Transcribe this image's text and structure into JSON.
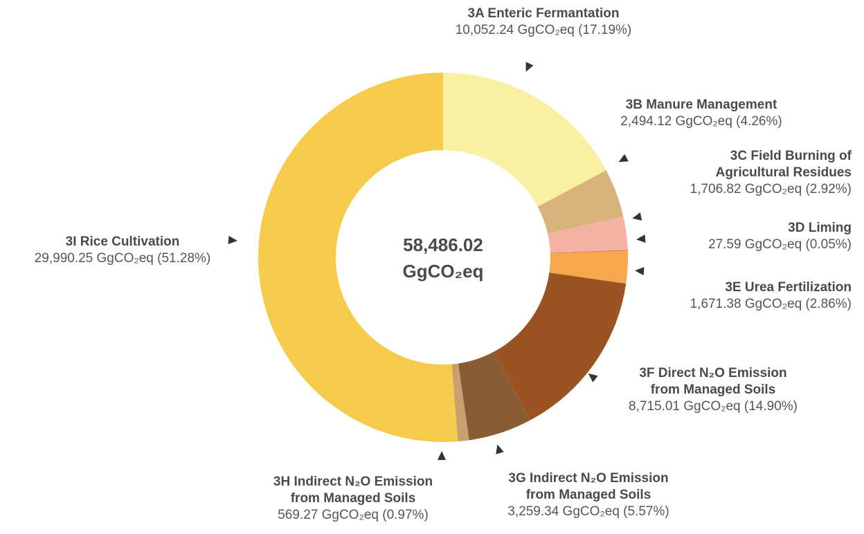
{
  "chart_data": {
    "type": "donut",
    "center_label": "58,486.02\nGgCO₂eq",
    "categories": [
      "3A Enteric Fermantation",
      "3B Manure Management",
      "3C Field Burning of\nAgricultural Residues",
      "3D Liming",
      "3E Urea Fertilization",
      "3F Direct N₂O Emission\nfrom Managed Soils",
      "3G Indirect N₂O Emission\nfrom Managed Soils",
      "3H Indirect N₂O Emission\nfrom Managed Soils",
      "3I Rice Cultivation"
    ],
    "values": [
      10052.24,
      2494.12,
      1706.82,
      27.59,
      1671.38,
      8715.01,
      3259.34,
      569.27,
      29990.25
    ],
    "value_labels": [
      "10,052.24 GgCO₂eq (17.19%)",
      "2,494.12 GgCO₂eq (4.26%)",
      "1,706.82 GgCO₂eq (2.92%)",
      "27.59 GgCO₂eq (0.05%)",
      "1,671.38 GgCO₂eq (2.86%)",
      "8,715.01 GgCO₂eq (14.90%)",
      "3,259.34 GgCO₂eq (5.57%)",
      "569.27 GgCO₂eq (0.97%)",
      "29,990.25 GgCO₂eq (51.28%)"
    ],
    "colors": [
      "#f8f1a2",
      "#d9b27c",
      "#f4b2a2",
      "#e8453a",
      "#f5a94c",
      "#9b5321",
      "#8a5c33",
      "#c9a070",
      "#f6cb4b"
    ]
  }
}
